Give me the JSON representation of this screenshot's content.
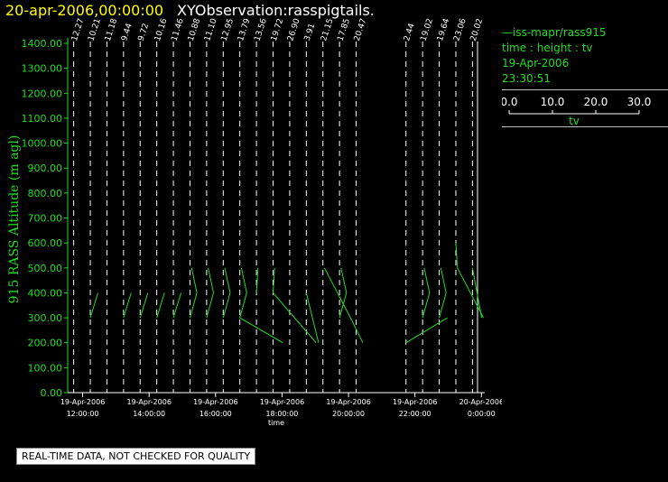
{
  "header": {
    "date_title": "20-apr-2006,00:00:00",
    "obs_title": "XYObservation:rasspigtails."
  },
  "legend": {
    "dash": "—",
    "series": "iss-mapr/rass915",
    "varline": "time : height : tv",
    "date": "19-Apr-2006",
    "time": "23:30:51",
    "scale_ticks": [
      "0.0",
      "10.0",
      "20.0",
      "30.0"
    ],
    "scale_label": "tv"
  },
  "disclaimer": "REAL-TIME DATA, NOT CHECKED FOR QUALITY",
  "colors": {
    "accent": "#ffff00",
    "series": "#22dd22",
    "axis": "#ffffff",
    "bg": "#000000"
  },
  "chart_data": {
    "type": "line",
    "ylabel": "915 RASS Altitude (m agl)",
    "xlabel": "time",
    "ylim": [
      0,
      1400
    ],
    "y_ticks": [
      "0.00",
      "100.00",
      "200.00",
      "300.00",
      "400.00",
      "500.00",
      "600.00",
      "700.00",
      "800.00",
      "900.00",
      "1000.00",
      "1100.00",
      "1200.00",
      "1300.00",
      "1400.00"
    ],
    "x_ticks": [
      {
        "hour": 12,
        "date": "19-Apr-2006",
        "time": "12:00:00"
      },
      {
        "hour": 14,
        "date": "19-Apr-2006",
        "time": "14:00:00"
      },
      {
        "hour": 16,
        "date": "19-Apr-2006",
        "time": "16:00:00"
      },
      {
        "hour": 18,
        "date": "19-Apr-2006",
        "time": "18:00:00"
      },
      {
        "hour": 20,
        "date": "19-Apr-2006",
        "time": "20:00:00"
      },
      {
        "hour": 22,
        "date": "19-Apr-2006",
        "time": "22:00:00"
      },
      {
        "hour": 24,
        "date": "20-Apr-2006",
        "time": "0:00:00"
      }
    ],
    "xlim_hours": [
      11.55,
      24.1
    ],
    "profiles": [
      {
        "label": "12.27",
        "hour": 11.73,
        "heights": [],
        "values": []
      },
      {
        "label": "10.21",
        "hour": 12.23,
        "heights": [
          300,
          400
        ],
        "values": [
          0,
          5
        ]
      },
      {
        "label": "11.18",
        "hour": 12.73,
        "heights": [],
        "values": []
      },
      {
        "label": "9.44",
        "hour": 13.23,
        "heights": [
          300,
          400
        ],
        "values": [
          0,
          5
        ]
      },
      {
        "label": "9.72",
        "hour": 13.73,
        "heights": [
          300,
          400
        ],
        "values": [
          0,
          5
        ]
      },
      {
        "label": "10.16",
        "hour": 14.23,
        "heights": [
          300,
          400
        ],
        "values": [
          0,
          5
        ]
      },
      {
        "label": "11.46",
        "hour": 14.73,
        "heights": [
          300,
          400
        ],
        "values": [
          0,
          5
        ]
      },
      {
        "label": "10.88",
        "hour": 15.23,
        "heights": [
          300,
          400,
          500
        ],
        "values": [
          0,
          4.5,
          1
        ]
      },
      {
        "label": "11.10",
        "hour": 15.73,
        "heights": [
          300,
          400,
          500
        ],
        "values": [
          0,
          4.5,
          1
        ]
      },
      {
        "label": "12.95",
        "hour": 16.23,
        "heights": [
          300,
          400,
          500
        ],
        "values": [
          0,
          4.5,
          1
        ]
      },
      {
        "label": "13.79",
        "hour": 16.73,
        "heights": [
          200,
          300,
          400,
          500
        ],
        "values": [
          28,
          0,
          4.5,
          1
        ]
      },
      {
        "label": "13.56",
        "hour": 17.23,
        "heights": [
          400,
          500
        ],
        "values": [
          0,
          1
        ]
      },
      {
        "label": "19.72",
        "hour": 17.73,
        "heights": [
          200,
          400,
          500
        ],
        "values": [
          28,
          0,
          1
        ]
      },
      {
        "label": "26.90",
        "hour": 18.23,
        "heights": [],
        "values": []
      },
      {
        "label": "3.91",
        "hour": 18.73,
        "heights": [
          200,
          400
        ],
        "values": [
          8,
          0
        ]
      },
      {
        "label": "21.15",
        "hour": 19.23,
        "heights": [
          200,
          300,
          500
        ],
        "values": [
          26,
          18,
          1
        ]
      },
      {
        "label": "17.85",
        "hour": 19.73,
        "heights": [
          300,
          400,
          500
        ],
        "values": [
          0,
          4.5,
          1
        ]
      },
      {
        "label": "20.47",
        "hour": 20.23,
        "heights": [],
        "values": []
      },
      {
        "label": "2.44",
        "hour": 21.73,
        "heights": [
          200,
          300
        ],
        "values": [
          0,
          27
        ]
      },
      {
        "label": "19.02",
        "hour": 22.23,
        "heights": [
          300,
          400,
          500
        ],
        "values": [
          0,
          4.5,
          1
        ]
      },
      {
        "label": "19.64",
        "hour": 22.73,
        "heights": [
          300,
          400,
          500
        ],
        "values": [
          0,
          4.5,
          1
        ]
      },
      {
        "label": "23.06",
        "hour": 23.23,
        "heights": [
          300,
          500,
          600
        ],
        "values": [
          18,
          1,
          0
        ]
      },
      {
        "label": "20.02",
        "hour": 23.73,
        "heights": [
          300,
          500
        ],
        "values": [
          6,
          0
        ]
      }
    ]
  }
}
